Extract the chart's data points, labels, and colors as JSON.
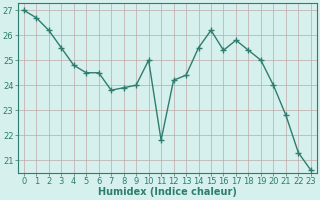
{
  "x": [
    0,
    1,
    2,
    3,
    4,
    5,
    6,
    7,
    8,
    9,
    10,
    11,
    12,
    13,
    14,
    15,
    16,
    17,
    18,
    19,
    20,
    21,
    22,
    23
  ],
  "y": [
    27.0,
    26.7,
    26.2,
    25.5,
    24.8,
    24.5,
    24.5,
    23.8,
    23.9,
    24.0,
    25.0,
    21.8,
    24.2,
    24.4,
    25.5,
    26.2,
    25.4,
    25.8,
    25.4,
    25.0,
    24.0,
    22.8,
    21.3,
    20.6
  ],
  "line_color": "#2e7d6e",
  "marker": "+",
  "marker_size": 4,
  "bg_color": "#d6f0ee",
  "grid_color_major": "#c0a8a8",
  "grid_color_minor": "#d8c8c8",
  "xlabel": "Humidex (Indice chaleur)",
  "ylim": [
    20.5,
    27.3
  ],
  "xlim": [
    -0.5,
    23.5
  ],
  "yticks": [
    21,
    22,
    23,
    24,
    25,
    26,
    27
  ],
  "xticks": [
    0,
    1,
    2,
    3,
    4,
    5,
    6,
    7,
    8,
    9,
    10,
    11,
    12,
    13,
    14,
    15,
    16,
    17,
    18,
    19,
    20,
    21,
    22,
    23
  ],
  "tick_label_fontsize": 6,
  "xlabel_fontsize": 7,
  "line_width": 1.0
}
